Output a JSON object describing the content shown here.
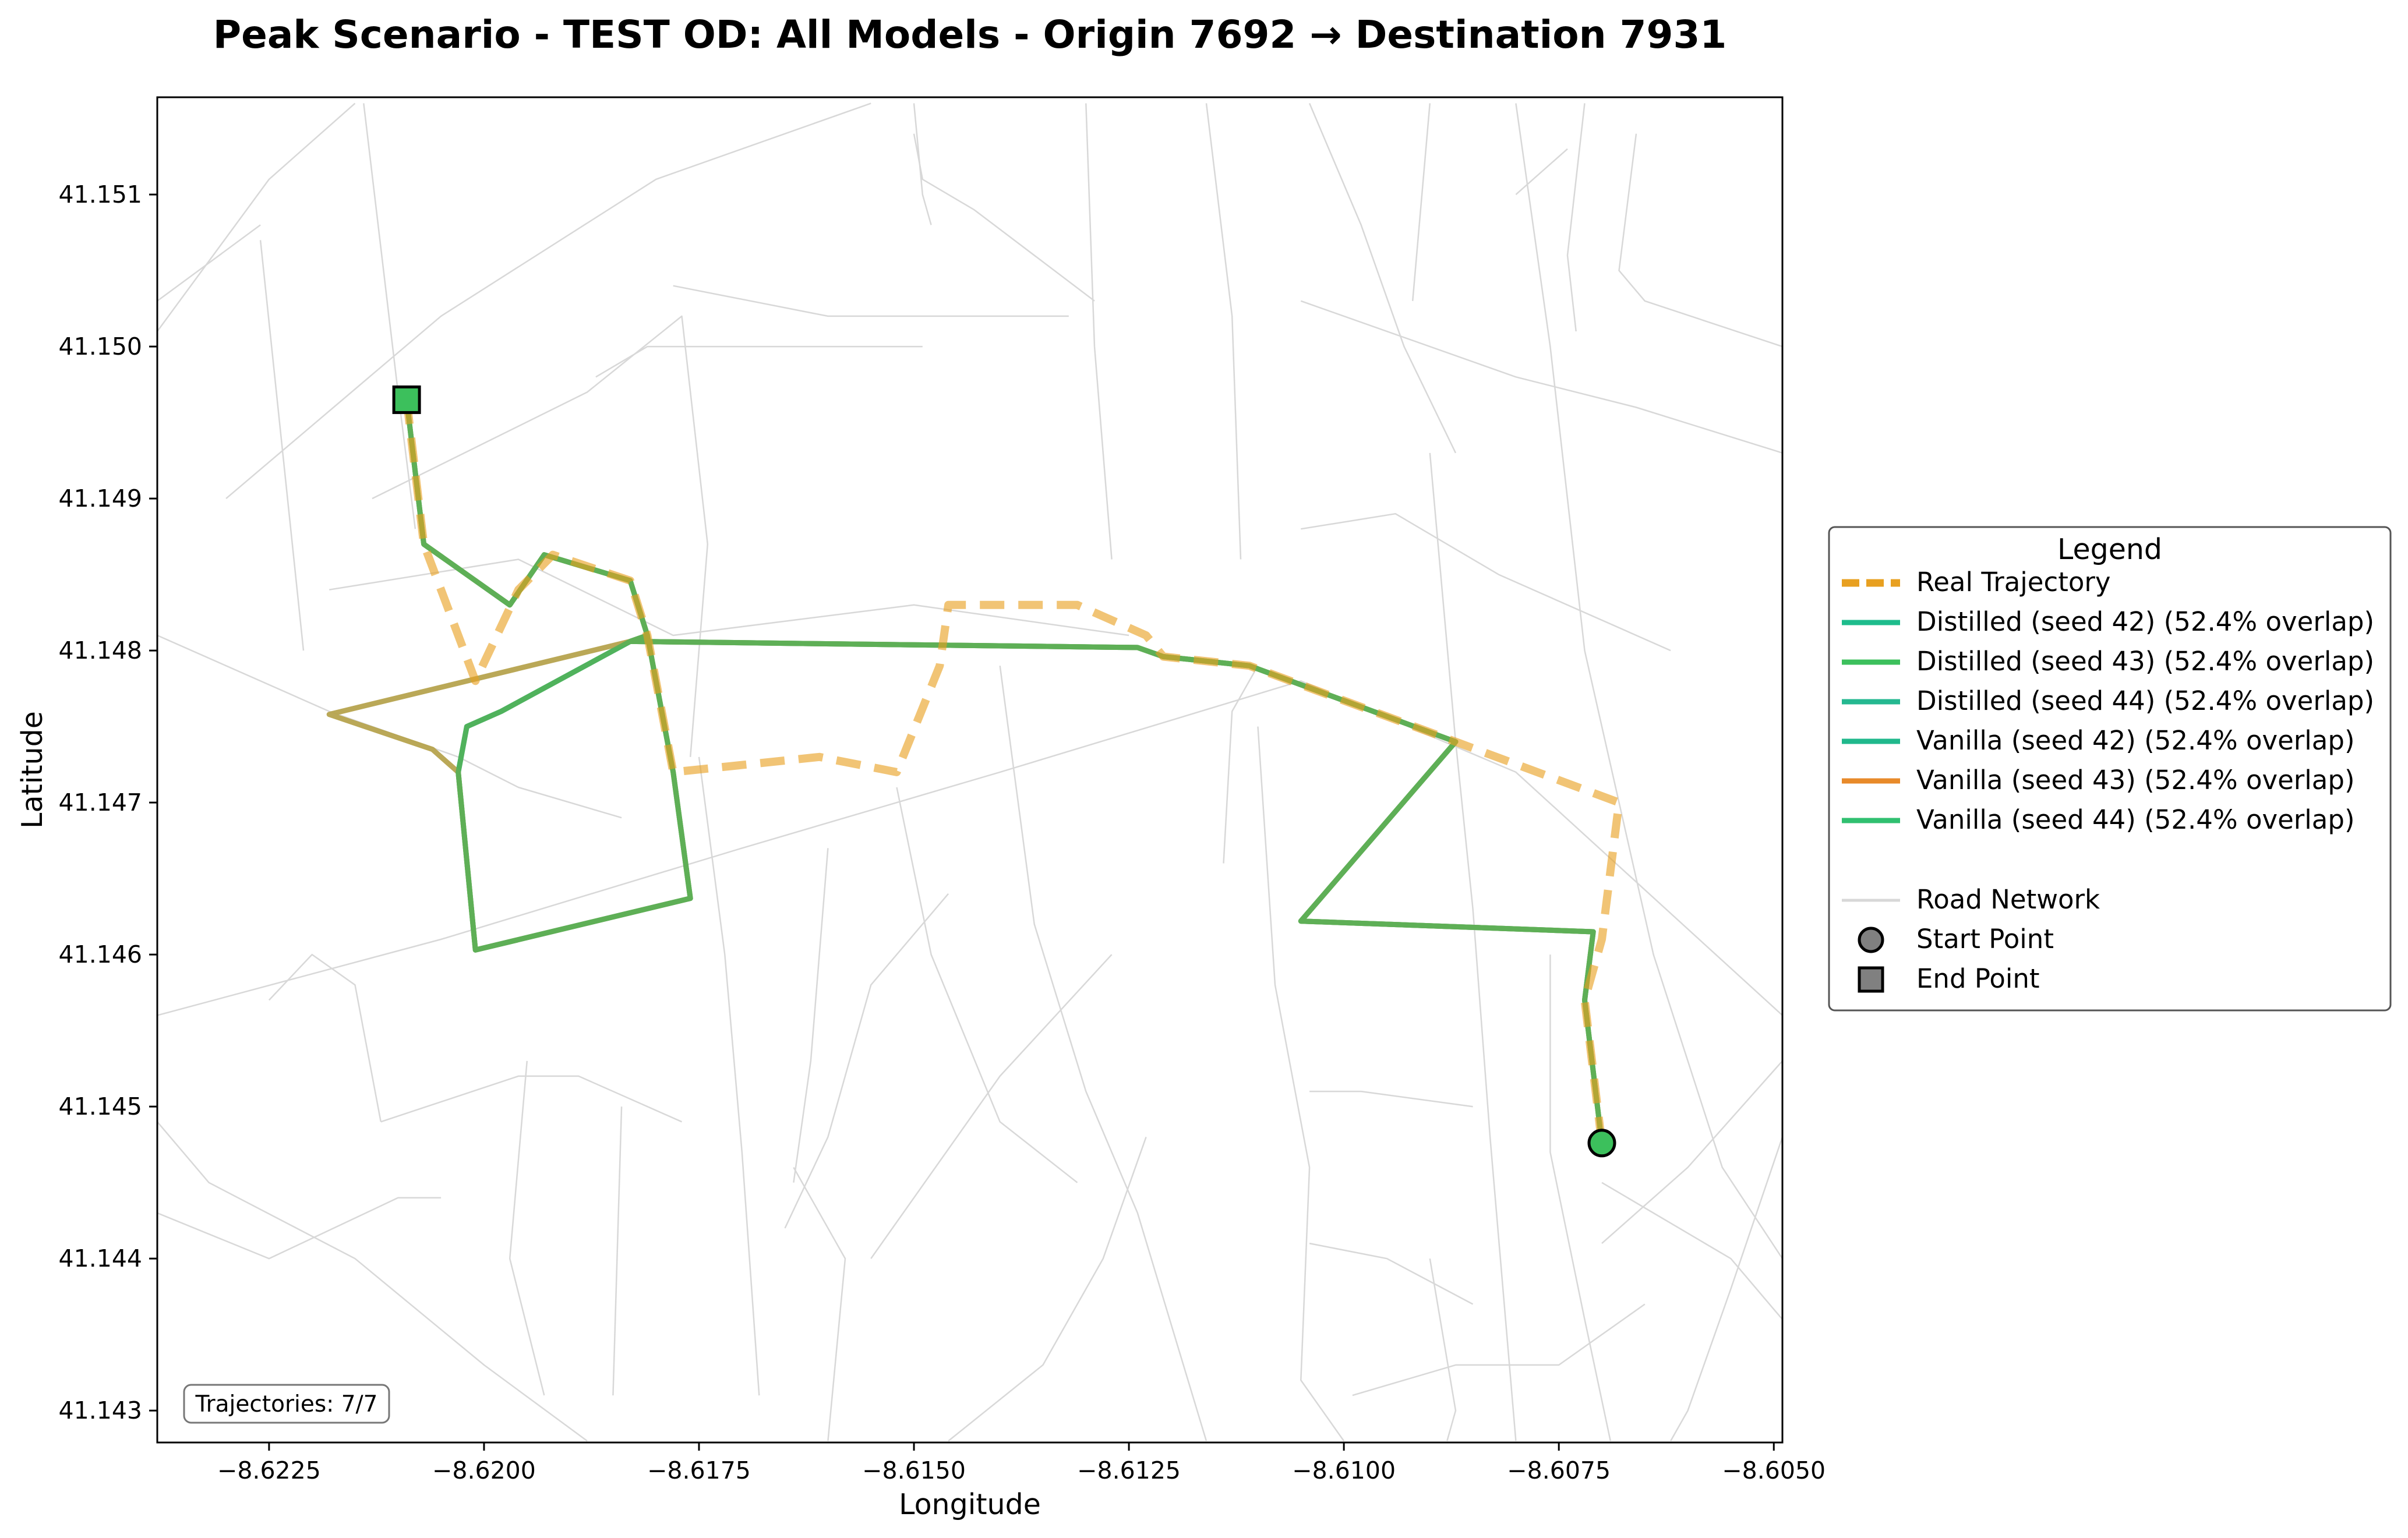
{
  "chart_data": {
    "type": "map",
    "title": "Peak Scenario - TEST OD: All Models - Origin 7692 → Destination 7931",
    "xlabel": "Longitude",
    "ylabel": "Latitude",
    "xlim": [
      -8.6238,
      -8.6049
    ],
    "ylim": [
      41.14279,
      41.15164
    ],
    "x_ticks": [
      -8.6225,
      -8.62,
      -8.6175,
      -8.615,
      -8.6125,
      -8.61,
      -8.6075,
      -8.605
    ],
    "x_tick_labels": [
      "−8.6225",
      "−8.6200",
      "−8.6175",
      "−8.6150",
      "−8.6125",
      "−8.6100",
      "−8.6075",
      "−8.6050"
    ],
    "y_ticks": [
      41.143,
      41.144,
      41.145,
      41.146,
      41.147,
      41.148,
      41.149,
      41.15,
      41.151
    ],
    "y_tick_labels": [
      "41.143",
      "41.144",
      "41.145",
      "41.146",
      "41.147",
      "41.148",
      "41.149",
      "41.150",
      "41.151"
    ],
    "grid": false,
    "legend": {
      "title": "Legend",
      "placement": "outside-right",
      "entries": [
        {
          "label": "Real Trajectory",
          "color": "#e8a020",
          "style": "dashed"
        },
        {
          "label": "Distilled (seed 42) (52.4% overlap)",
          "color": "#1ebc8c",
          "style": "solid"
        },
        {
          "label": "Distilled (seed 43) (52.4% overlap)",
          "color": "#3cc05c",
          "style": "solid"
        },
        {
          "label": "Distilled (seed 44) (52.4% overlap)",
          "color": "#25b890",
          "style": "solid"
        },
        {
          "label": "Vanilla (seed 42) (52.4% overlap)",
          "color": "#20b88c",
          "style": "solid"
        },
        {
          "label": "Vanilla (seed 43) (52.4% overlap)",
          "color": "#e88a2a",
          "style": "solid"
        },
        {
          "label": "Vanilla (seed 44) (52.4% overlap)",
          "color": "#30c070",
          "style": "solid"
        },
        {
          "label": "Road Network",
          "color": "#d8d8d8",
          "style": "solid"
        },
        {
          "label": "Start Point",
          "color": "#808080",
          "style": "circle"
        },
        {
          "label": "End Point",
          "color": "#808080",
          "style": "square"
        }
      ]
    },
    "annotation": "Trajectories: 7/7",
    "start_point": {
      "lon": -8.607,
      "lat": 41.14476
    },
    "end_point": {
      "lon": -8.6209,
      "lat": 41.14965
    },
    "real_trajectory": [
      [
        -8.6209,
        41.14965
      ],
      [
        -8.6207,
        41.1487
      ],
      [
        -8.6201,
        41.1478
      ],
      [
        -8.6196,
        41.1484
      ],
      [
        -8.6192,
        41.14863
      ],
      [
        -8.6183,
        41.14846
      ],
      [
        -8.6181,
        41.1481
      ],
      [
        -8.6178,
        41.1472
      ],
      [
        -8.6161,
        41.1473
      ],
      [
        -8.6152,
        41.1472
      ],
      [
        -8.6147,
        41.1479
      ],
      [
        -8.6146,
        41.1483
      ],
      [
        -8.6131,
        41.1483
      ],
      [
        -8.6123,
        41.1481
      ],
      [
        -8.6121,
        41.14796
      ],
      [
        -8.6111,
        41.1479
      ],
      [
        -8.6087,
        41.1474
      ],
      [
        -8.6068,
        41.147
      ],
      [
        -8.607,
        41.1461
      ],
      [
        -8.6072,
        41.1457
      ],
      [
        -8.607,
        41.14476
      ]
    ],
    "distilled_route": [
      [
        -8.6209,
        41.14965
      ],
      [
        -8.6207,
        41.1487
      ],
      [
        -8.6197,
        41.1483
      ],
      [
        -8.6193,
        41.14863
      ],
      [
        -8.6183,
        41.14846
      ],
      [
        -8.6181,
        41.1481
      ],
      [
        -8.6183,
        41.14806
      ],
      [
        -8.6198,
        41.1476
      ],
      [
        -8.6202,
        41.1475
      ],
      [
        -8.6203,
        41.1472
      ],
      [
        -8.6201,
        41.14603
      ],
      [
        -8.6176,
        41.14637
      ],
      [
        -8.6178,
        41.1472
      ],
      [
        -8.6181,
        41.1481
      ],
      [
        -8.6183,
        41.14806
      ],
      [
        -8.6124,
        41.14802
      ],
      [
        -8.6121,
        41.14796
      ],
      [
        -8.6111,
        41.1479
      ],
      [
        -8.6087,
        41.1474
      ],
      [
        -8.6105,
        41.14622
      ],
      [
        -8.6071,
        41.14615
      ],
      [
        -8.6072,
        41.1457
      ],
      [
        -8.607,
        41.14476
      ]
    ],
    "vanilla_route": [
      [
        -8.6209,
        41.14965
      ],
      [
        -8.6207,
        41.1487
      ],
      [
        -8.6197,
        41.1483
      ],
      [
        -8.6193,
        41.14863
      ],
      [
        -8.6183,
        41.14846
      ],
      [
        -8.6181,
        41.1481
      ],
      [
        -8.6183,
        41.14806
      ],
      [
        -8.6218,
        41.14758
      ],
      [
        -8.6206,
        41.14735
      ],
      [
        -8.6203,
        41.1472
      ],
      [
        -8.6201,
        41.14603
      ],
      [
        -8.6176,
        41.14637
      ],
      [
        -8.6178,
        41.1472
      ],
      [
        -8.6181,
        41.1481
      ],
      [
        -8.6183,
        41.14806
      ],
      [
        -8.6124,
        41.14802
      ],
      [
        -8.6121,
        41.14796
      ],
      [
        -8.6111,
        41.1479
      ],
      [
        -8.6087,
        41.1474
      ],
      [
        -8.6105,
        41.14622
      ],
      [
        -8.6071,
        41.14615
      ],
      [
        -8.6072,
        41.1457
      ],
      [
        -8.607,
        41.14476
      ]
    ],
    "road_network": [
      [
        [
          -8.6238,
          41.1481
        ],
        [
          -8.6218,
          41.1476
        ],
        [
          -8.6203,
          41.1473
        ],
        [
          -8.6196,
          41.1471
        ],
        [
          -8.6184,
          41.1469
        ]
      ],
      [
        [
          -8.6238,
          41.1456
        ],
        [
          -8.6205,
          41.1461
        ],
        [
          -8.617,
          41.1467
        ],
        [
          -8.614,
          41.1472
        ],
        [
          -8.6105,
          41.1478
        ],
        [
          -8.608,
          41.1472
        ],
        [
          -8.6049,
          41.1456
        ]
      ],
      [
        [
          -8.6238,
          41.1501
        ],
        [
          -8.6225,
          41.1511
        ],
        [
          -8.6215,
          41.1516
        ]
      ],
      [
        [
          -8.623,
          41.149
        ],
        [
          -8.6205,
          41.1502
        ],
        [
          -8.618,
          41.1511
        ],
        [
          -8.6155,
          41.1516
        ]
      ],
      [
        [
          -8.6226,
          41.1507
        ],
        [
          -8.6221,
          41.148
        ]
      ],
      [
        [
          -8.6214,
          41.1516
        ],
        [
          -8.621,
          41.1497
        ],
        [
          -8.6208,
          41.1488
        ]
      ],
      [
        [
          -8.6218,
          41.1484
        ],
        [
          -8.6196,
          41.1486
        ],
        [
          -8.6178,
          41.1481
        ],
        [
          -8.615,
          41.1483
        ],
        [
          -8.6125,
          41.1481
        ]
      ],
      [
        [
          -8.6213,
          41.149
        ],
        [
          -8.6188,
          41.1497
        ],
        [
          -8.6177,
          41.1502
        ],
        [
          -8.6174,
          41.1487
        ],
        [
          -8.6176,
          41.1473
        ]
      ],
      [
        [
          -8.6187,
          41.1498
        ],
        [
          -8.6181,
          41.15
        ],
        [
          -8.6159,
          41.15
        ],
        [
          -8.6149,
          41.15
        ]
      ],
      [
        [
          -8.6178,
          41.1504
        ],
        [
          -8.616,
          41.1502
        ],
        [
          -8.6132,
          41.1502
        ]
      ],
      [
        [
          -8.615,
          41.1514
        ],
        [
          -8.6149,
          41.1511
        ],
        [
          -8.6143,
          41.1509
        ],
        [
          -8.6129,
          41.1503
        ]
      ],
      [
        [
          -8.6238,
          41.1503
        ],
        [
          -8.6226,
          41.1508
        ]
      ],
      [
        [
          -8.6175,
          41.1473
        ],
        [
          -8.6172,
          41.146
        ],
        [
          -8.617,
          41.1447
        ],
        [
          -8.6168,
          41.1431
        ]
      ],
      [
        [
          -8.6184,
          41.145
        ],
        [
          -8.6185,
          41.1431
        ]
      ],
      [
        [
          -8.6164,
          41.1446
        ],
        [
          -8.6158,
          41.144
        ],
        [
          -8.616,
          41.1428
        ]
      ],
      [
        [
          -8.6152,
          41.1471
        ],
        [
          -8.6148,
          41.146
        ],
        [
          -8.614,
          41.1449
        ],
        [
          -8.6131,
          41.1445
        ]
      ],
      [
        [
          -8.614,
          41.1479
        ],
        [
          -8.6136,
          41.1462
        ],
        [
          -8.613,
          41.1451
        ],
        [
          -8.6124,
          41.1443
        ],
        [
          -8.6116,
          41.1428
        ]
      ],
      [
        [
          -8.6146,
          41.1464
        ],
        [
          -8.6155,
          41.1458
        ],
        [
          -8.616,
          41.1448
        ],
        [
          -8.6165,
          41.1442
        ]
      ],
      [
        [
          -8.616,
          41.1467
        ],
        [
          -8.6162,
          41.1453
        ],
        [
          -8.6164,
          41.1445
        ]
      ],
      [
        [
          -8.6127,
          41.146
        ],
        [
          -8.614,
          41.1452
        ],
        [
          -8.615,
          41.1444
        ],
        [
          -8.6155,
          41.144
        ]
      ],
      [
        [
          -8.613,
          41.1516
        ],
        [
          -8.6129,
          41.15
        ],
        [
          -8.6127,
          41.1486
        ]
      ],
      [
        [
          -8.6116,
          41.1516
        ],
        [
          -8.6113,
          41.1502
        ],
        [
          -8.6112,
          41.1486
        ]
      ],
      [
        [
          -8.6104,
          41.1516
        ],
        [
          -8.6098,
          41.1508
        ],
        [
          -8.6093,
          41.15
        ],
        [
          -8.6087,
          41.1493
        ]
      ],
      [
        [
          -8.6092,
          41.1503
        ],
        [
          -8.609,
          41.1516
        ]
      ],
      [
        [
          -8.6105,
          41.1503
        ],
        [
          -8.608,
          41.1498
        ],
        [
          -8.6066,
          41.1496
        ],
        [
          -8.6049,
          41.1493
        ]
      ],
      [
        [
          -8.6105,
          41.1488
        ],
        [
          -8.6094,
          41.1489
        ],
        [
          -8.6082,
          41.1485
        ],
        [
          -8.6062,
          41.148
        ]
      ],
      [
        [
          -8.608,
          41.1516
        ],
        [
          -8.6076,
          41.15
        ],
        [
          -8.6072,
          41.148
        ],
        [
          -8.6064,
          41.146
        ],
        [
          -8.6056,
          41.1446
        ],
        [
          -8.6049,
          41.144
        ]
      ],
      [
        [
          -8.6072,
          41.1516
        ],
        [
          -8.6074,
          41.1506
        ],
        [
          -8.6073,
          41.1501
        ]
      ],
      [
        [
          -8.6066,
          41.1514
        ],
        [
          -8.6068,
          41.1505
        ],
        [
          -8.6065,
          41.1503
        ],
        [
          -8.6049,
          41.15
        ]
      ],
      [
        [
          -8.6074,
          41.1513
        ],
        [
          -8.6078,
          41.1511
        ],
        [
          -8.608,
          41.151
        ]
      ],
      [
        [
          -8.609,
          41.1493
        ],
        [
          -8.6087,
          41.1474
        ],
        [
          -8.6085,
          41.1463
        ],
        [
          -8.6083,
          41.1448
        ],
        [
          -8.608,
          41.1428
        ]
      ],
      [
        [
          -8.6076,
          41.146
        ],
        [
          -8.6076,
          41.1447
        ],
        [
          -8.6072,
          41.1436
        ],
        [
          -8.6069,
          41.1428
        ]
      ],
      [
        [
          -8.607,
          41.1445
        ],
        [
          -8.6055,
          41.144
        ],
        [
          -8.6049,
          41.1436
        ]
      ],
      [
        [
          -8.6049,
          41.1453
        ],
        [
          -8.606,
          41.1446
        ],
        [
          -8.607,
          41.1441
        ]
      ],
      [
        [
          -8.6049,
          41.1448
        ],
        [
          -8.6055,
          41.1438
        ],
        [
          -8.606,
          41.143
        ],
        [
          -8.6062,
          41.1428
        ]
      ],
      [
        [
          -8.611,
          41.1475
        ],
        [
          -8.6108,
          41.1458
        ],
        [
          -8.6104,
          41.1446
        ],
        [
          -8.6105,
          41.1432
        ],
        [
          -8.61,
          41.1428
        ]
      ],
      [
        [
          -8.6114,
          41.1466
        ],
        [
          -8.6113,
          41.1476
        ],
        [
          -8.611,
          41.1479
        ]
      ],
      [
        [
          -8.6104,
          41.1451
        ],
        [
          -8.6098,
          41.1451
        ],
        [
          -8.6085,
          41.145
        ]
      ],
      [
        [
          -8.6104,
          41.1441
        ],
        [
          -8.6095,
          41.144
        ],
        [
          -8.6085,
          41.1437
        ]
      ],
      [
        [
          -8.609,
          41.144
        ],
        [
          -8.6087,
          41.143
        ],
        [
          -8.6088,
          41.1428
        ]
      ],
      [
        [
          -8.6099,
          41.1431
        ],
        [
          -8.6087,
          41.1433
        ],
        [
          -8.6075,
          41.1433
        ],
        [
          -8.6065,
          41.1437
        ]
      ],
      [
        [
          -8.6123,
          41.1448
        ],
        [
          -8.6128,
          41.144
        ],
        [
          -8.6135,
          41.1433
        ],
        [
          -8.6146,
          41.1428
        ]
      ],
      [
        [
          -8.6212,
          41.1449
        ],
        [
          -8.6215,
          41.1458
        ],
        [
          -8.622,
          41.146
        ],
        [
          -8.6225,
          41.1457
        ]
      ],
      [
        [
          -8.6238,
          41.1449
        ],
        [
          -8.6232,
          41.1445
        ],
        [
          -8.6215,
          41.144
        ],
        [
          -8.62,
          41.1433
        ],
        [
          -8.6188,
          41.1428
        ]
      ],
      [
        [
          -8.6238,
          41.1443
        ],
        [
          -8.6225,
          41.144
        ],
        [
          -8.621,
          41.1444
        ],
        [
          -8.6205,
          41.1444
        ]
      ],
      [
        [
          -8.6212,
          41.1449
        ],
        [
          -8.6196,
          41.1452
        ],
        [
          -8.6189,
          41.1452
        ],
        [
          -8.6177,
          41.1449
        ]
      ],
      [
        [
          -8.6195,
          41.1453
        ],
        [
          -8.6197,
          41.144
        ],
        [
          -8.6193,
          41.1431
        ]
      ],
      [
        [
          -8.615,
          41.1516
        ],
        [
          -8.6149,
          41.151
        ],
        [
          -8.6148,
          41.1508
        ]
      ]
    ]
  },
  "ui": {
    "colors": {
      "real": "#e8a020",
      "real_alpha": "#f2bd6a",
      "distilled42": "#1ebc8c",
      "distilled43": "#3cc05c",
      "distilled44": "#25b890",
      "vanilla42": "#20b88c",
      "vanilla43": "#e88a2a",
      "vanilla44": "#30c070",
      "route_olive": "#b6a34e",
      "route_green": "#55b056",
      "road": "#d8d8d8",
      "start_fill": "#3cc05c",
      "end_fill": "#3cc05c",
      "legend_marker": "#808080"
    }
  }
}
